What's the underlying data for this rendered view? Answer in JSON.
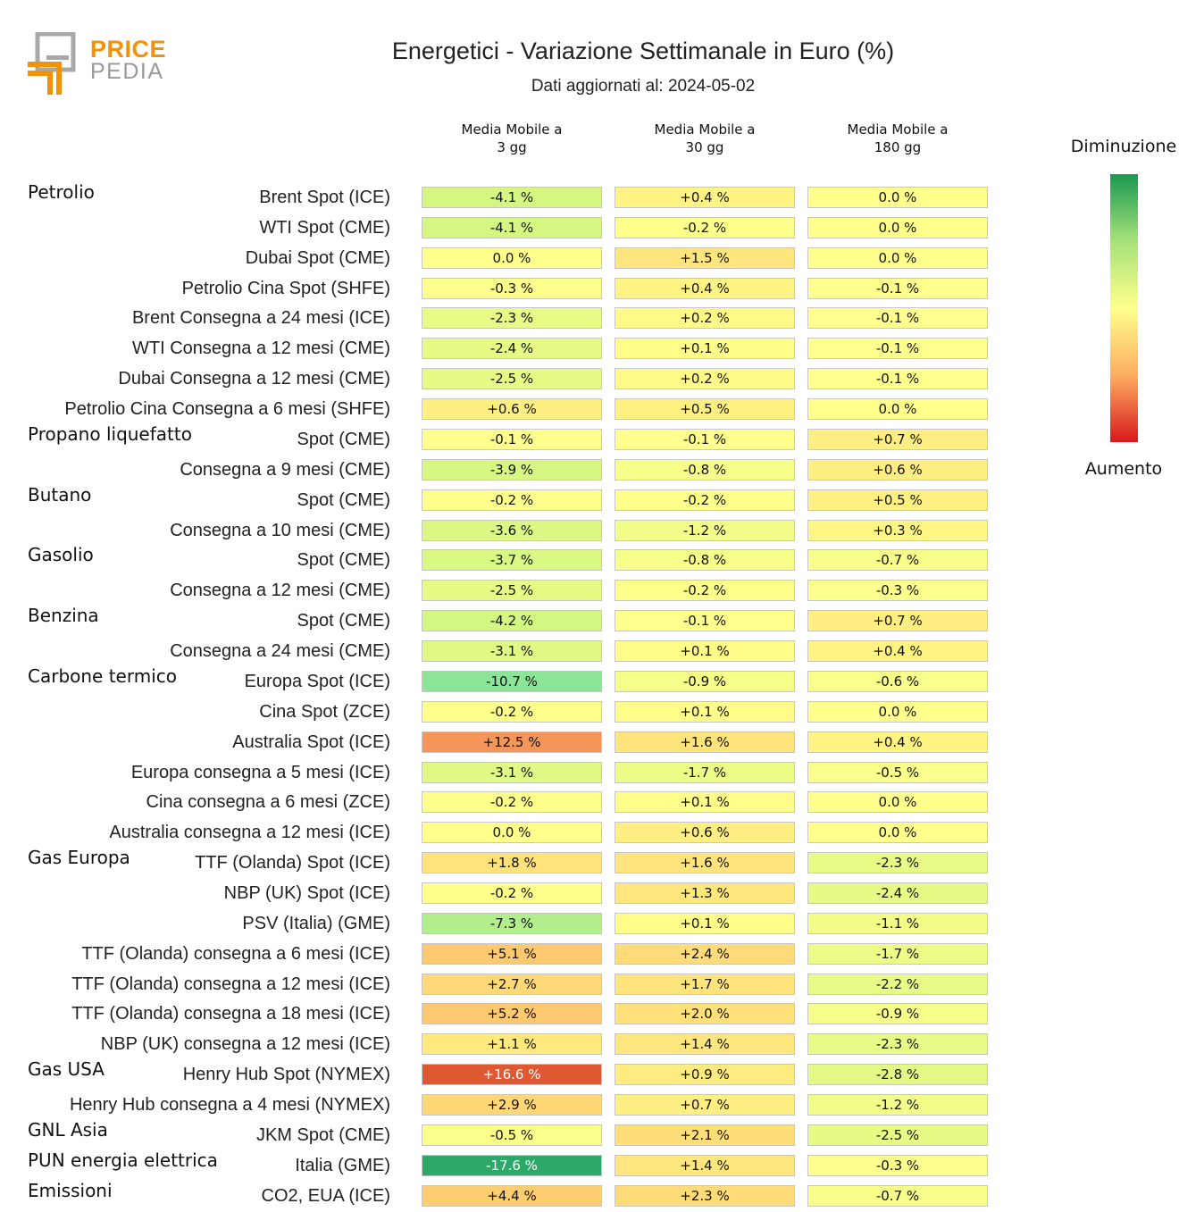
{
  "logo": {
    "line1": "PRICE",
    "line2": "PEDIA"
  },
  "chart_data": {
    "type": "heatmap",
    "title": "Energetici - Variazione Settimanale in Euro (%)",
    "subtitle": "Dati aggiornati al: 2024-05-02",
    "columns": [
      "Media Mobile a\n3 gg",
      "Media Mobile a\n30 gg",
      "Media Mobile a\n180 gg"
    ],
    "unit": "%",
    "color_scale": {
      "low_label": "Diminuzione",
      "high_label": "Aumento",
      "low_color": "#1a9850",
      "mid_color": "#ffff8c",
      "high_color": "#d7191c"
    },
    "groups": [
      {
        "name": "Petrolio",
        "rows": [
          {
            "label": "Brent Spot (ICE)",
            "values": [
              -4.1,
              0.4,
              0.0
            ]
          },
          {
            "label": "WTI Spot (CME)",
            "values": [
              -4.1,
              -0.2,
              0.0
            ]
          },
          {
            "label": "Dubai Spot (CME)",
            "values": [
              0.0,
              1.5,
              0.0
            ]
          },
          {
            "label": "Petrolio Cina Spot (SHFE)",
            "values": [
              -0.3,
              0.4,
              -0.1
            ]
          },
          {
            "label": "Brent Consegna a 24 mesi (ICE)",
            "values": [
              -2.3,
              0.2,
              -0.1
            ]
          },
          {
            "label": "WTI Consegna a 12 mesi (CME)",
            "values": [
              -2.4,
              0.1,
              -0.1
            ]
          },
          {
            "label": "Dubai Consegna a 12 mesi (CME)",
            "values": [
              -2.5,
              0.2,
              -0.1
            ]
          },
          {
            "label": "Petrolio Cina Consegna a 6 mesi (SHFE)",
            "values": [
              0.6,
              0.5,
              0.0
            ]
          }
        ]
      },
      {
        "name": "Propano liquefatto",
        "rows": [
          {
            "label": "Spot (CME)",
            "values": [
              -0.1,
              -0.1,
              0.7
            ]
          },
          {
            "label": "Consegna a 9 mesi (CME)",
            "values": [
              -3.9,
              -0.8,
              0.6
            ]
          }
        ]
      },
      {
        "name": "Butano",
        "rows": [
          {
            "label": "Spot (CME)",
            "values": [
              -0.2,
              -0.2,
              0.5
            ]
          },
          {
            "label": "Consegna a 10 mesi (CME)",
            "values": [
              -3.6,
              -1.2,
              0.3
            ]
          }
        ]
      },
      {
        "name": "Gasolio",
        "rows": [
          {
            "label": "Spot (CME)",
            "values": [
              -3.7,
              -0.8,
              -0.7
            ]
          },
          {
            "label": "Consegna a 12 mesi (CME)",
            "values": [
              -2.5,
              -0.2,
              -0.3
            ]
          }
        ]
      },
      {
        "name": "Benzina",
        "rows": [
          {
            "label": "Spot (CME)",
            "values": [
              -4.2,
              -0.1,
              0.7
            ]
          },
          {
            "label": "Consegna a 24 mesi (CME)",
            "values": [
              -3.1,
              0.1,
              0.4
            ]
          }
        ]
      },
      {
        "name": "Carbone termico",
        "rows": [
          {
            "label": "Europa Spot (ICE)",
            "values": [
              -10.7,
              -0.9,
              -0.6
            ]
          },
          {
            "label": "Cina Spot (ZCE)",
            "values": [
              -0.2,
              0.1,
              0.0
            ]
          },
          {
            "label": "Australia Spot (ICE)",
            "values": [
              12.5,
              1.6,
              0.4
            ]
          },
          {
            "label": "Europa consegna a 5 mesi (ICE)",
            "values": [
              -3.1,
              -1.7,
              -0.5
            ]
          },
          {
            "label": "Cina consegna a 6 mesi (ZCE)",
            "values": [
              -0.2,
              0.1,
              0.0
            ]
          },
          {
            "label": "Australia consegna a 12 mesi (ICE)",
            "values": [
              0.0,
              0.6,
              0.0
            ]
          }
        ]
      },
      {
        "name": "Gas Europa",
        "rows": [
          {
            "label": "TTF (Olanda) Spot (ICE)",
            "values": [
              1.8,
              1.6,
              -2.3
            ]
          },
          {
            "label": "NBP (UK) Spot (ICE)",
            "values": [
              -0.2,
              1.3,
              -2.4
            ]
          },
          {
            "label": "PSV (Italia) (GME)",
            "values": [
              -7.3,
              0.1,
              -1.1
            ]
          },
          {
            "label": "TTF (Olanda) consegna a 6 mesi (ICE)",
            "values": [
              5.1,
              2.4,
              -1.7
            ]
          },
          {
            "label": "TTF (Olanda) consegna a 12 mesi (ICE)",
            "values": [
              2.7,
              1.7,
              -2.2
            ]
          },
          {
            "label": "TTF (Olanda) consegna a 18 mesi (ICE)",
            "values": [
              5.2,
              2.0,
              -0.9
            ]
          },
          {
            "label": "NBP (UK) consegna a 12 mesi (ICE)",
            "values": [
              1.1,
              1.4,
              -2.3
            ]
          }
        ]
      },
      {
        "name": "Gas USA",
        "rows": [
          {
            "label": "Henry Hub Spot (NYMEX)",
            "values": [
              16.6,
              0.9,
              -2.8
            ]
          },
          {
            "label": "Henry Hub consegna a 4 mesi (NYMEX)",
            "values": [
              2.9,
              0.7,
              -1.2
            ]
          }
        ]
      },
      {
        "name": "GNL Asia",
        "rows": [
          {
            "label": "JKM Spot (CME)",
            "values": [
              -0.5,
              2.1,
              -2.5
            ]
          }
        ]
      },
      {
        "name": "PUN energia elettrica",
        "rows": [
          {
            "label": "Italia (GME)",
            "values": [
              -17.6,
              1.4,
              -0.3
            ]
          }
        ]
      },
      {
        "name": "Emissioni",
        "rows": [
          {
            "label": "CO2, EUA (ICE)",
            "values": [
              4.4,
              2.3,
              -0.7
            ]
          }
        ]
      }
    ]
  }
}
